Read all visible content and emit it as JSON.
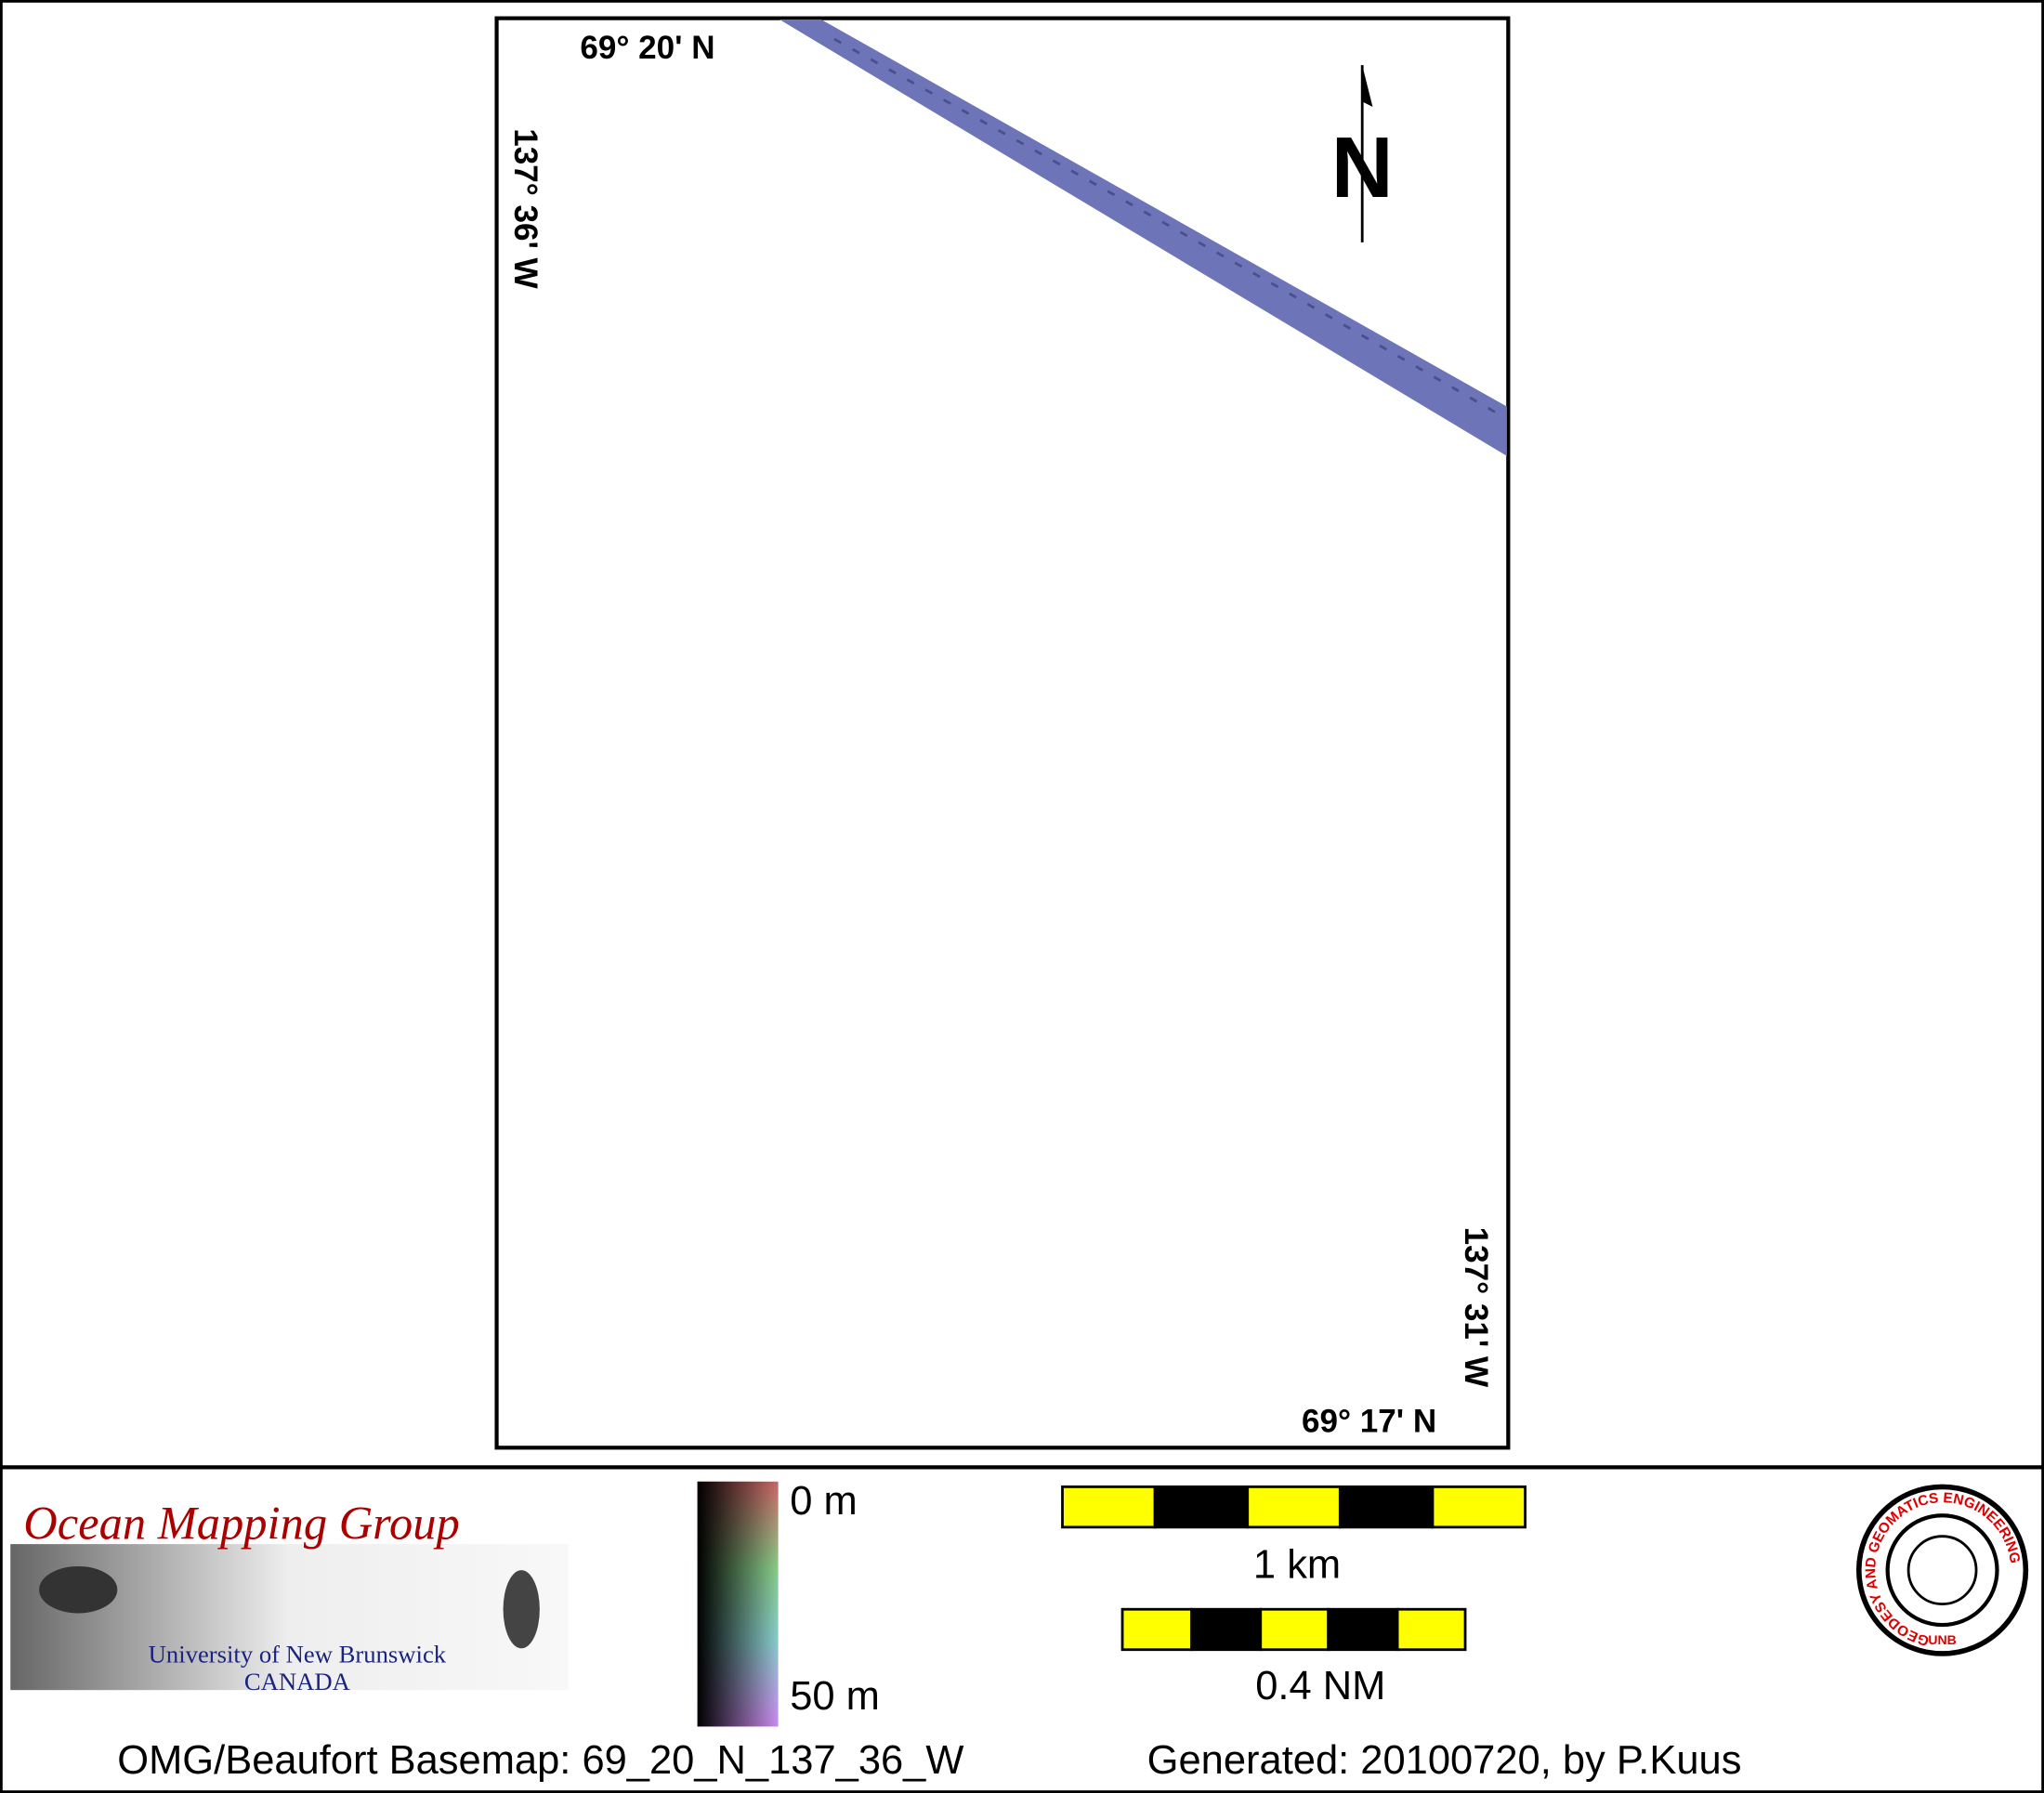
{
  "map": {
    "top_lat": "69° 20' N",
    "bottom_lat": "69° 17' N",
    "left_lon": "137° 36' W",
    "right_lon": "137° 31' W",
    "north": "N"
  },
  "legend": {
    "depth_top": "0 m",
    "depth_bottom": "50 m",
    "scale_km": "1 km",
    "scale_nm": "0.4 NM"
  },
  "logo": {
    "title": "Ocean Mapping Group",
    "university": "University of New Brunswick",
    "country": "CANADA"
  },
  "seal": {
    "ring": "GEODESY AND GEOMATICS ENGINEERING",
    "bottom": "UNB"
  },
  "footer": {
    "basemap": "OMG/Beaufort Basemap: 69_20_N_137_36_W",
    "generated": "Generated: 20100720, by P.Kuus"
  }
}
